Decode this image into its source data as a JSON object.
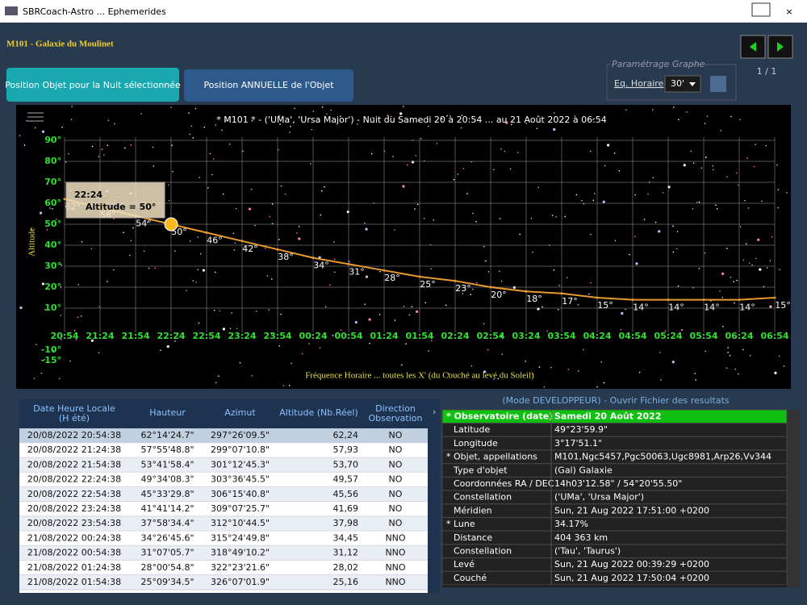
{
  "window": {
    "title": "SBRCoach-Astro ... Ephemerides"
  },
  "header": {
    "title": "M101 - Galaxie du Moulinet",
    "page": "1 / 1"
  },
  "tabs": [
    "Position Objet pour la Nuit sélectionnée",
    "Position ANNUELLE de l'Objet"
  ],
  "settings": {
    "group": "Paramétrage Graphe",
    "label": "Eq. Horaire",
    "value": "30'"
  },
  "chart_data": {
    "type": "line",
    "title": "* M101 * - ('UMa', 'Ursa Major') - Nuit du Samedi 20 à 20:54 ... au 21 Août 2022 à 06:54",
    "y_label": "Altitude",
    "x_label": "Fréquence Horaire ... toutes les X' (du Couché au levé du Soleil)",
    "categories": [
      "20:54",
      "21:24",
      "21:54",
      "22:24",
      "22:54",
      "23:24",
      "23:54",
      "00:24",
      "00:54",
      "01:24",
      "01:54",
      "02:24",
      "02:54",
      "03:24",
      "03:54",
      "04:24",
      "04:54",
      "05:24",
      "05:54",
      "06:24",
      "06:54"
    ],
    "series": [
      {
        "name": "Altitude",
        "color": "#e89a30",
        "values": [
          62,
          58,
          54,
          50,
          46,
          42,
          38,
          34,
          31,
          28,
          25,
          23,
          20,
          18,
          17,
          15,
          14,
          14,
          14,
          14,
          15
        ],
        "value_labels": [
          "62°",
          "58°",
          "54°",
          "50°",
          "46°",
          "42°",
          "38°",
          "34°",
          "31°",
          "28°",
          "25°",
          "23°",
          "20°",
          "18°",
          "17°",
          "15°",
          "14°",
          "14°",
          "14°",
          "14°",
          "15°"
        ]
      }
    ],
    "ylim": [
      -28,
      96
    ],
    "yticks": [
      {
        "value": -15,
        "label": "-15°"
      },
      {
        "value": -10,
        "label": "-10°"
      },
      {
        "value": 10,
        "label": "10°"
      },
      {
        "value": 20,
        "label": "20°"
      },
      {
        "value": 30,
        "label": "30°"
      },
      {
        "value": 40,
        "label": "40°"
      },
      {
        "value": 50,
        "label": "50°"
      },
      {
        "value": 60,
        "label": "60°"
      },
      {
        "value": 70,
        "label": "70°"
      },
      {
        "value": 80,
        "label": "80°"
      },
      {
        "value": 90,
        "label": "90°"
      }
    ],
    "grid": true,
    "tooltip": {
      "title": "22:24",
      "text": "Altitude = 50°"
    }
  },
  "table": {
    "headers": [
      [
        "Date Heure Locale",
        "(H été)"
      ],
      [
        "Hauteur"
      ],
      [
        "Azimut"
      ],
      [
        "Altitude (Nb.Réel)"
      ],
      [
        "Direction",
        "Observation"
      ]
    ],
    "rows": [
      [
        "20/08/2022 20:54:38",
        "62°14'24.7\"",
        "297°26'09.5\"",
        "62,24",
        "NO"
      ],
      [
        "20/08/2022 21:24:38",
        "57°55'48.8\"",
        "299°07'10.8\"",
        "57,93",
        "NO"
      ],
      [
        "20/08/2022 21:54:38",
        "53°41'58.4\"",
        "301°12'45.3\"",
        "53,70",
        "NO"
      ],
      [
        "20/08/2022 22:24:38",
        "49°34'08.3\"",
        "303°36'45.5\"",
        "49,57",
        "NO"
      ],
      [
        "20/08/2022 22:54:38",
        "45°33'29.8\"",
        "306°15'40.8\"",
        "45,56",
        "NO"
      ],
      [
        "20/08/2022 23:24:38",
        "41°41'14.2\"",
        "309°07'25.7\"",
        "41,69",
        "NO"
      ],
      [
        "20/08/2022 23:54:38",
        "37°58'34.4\"",
        "312°10'44.5\"",
        "37,98",
        "NO"
      ],
      [
        "21/08/2022 00:24:38",
        "34°26'45.6\"",
        "315°24'49.8\"",
        "34,45",
        "NNO"
      ],
      [
        "21/08/2022 00:54:38",
        "31°07'05.7\"",
        "318°49'10.2\"",
        "31,12",
        "NNO"
      ],
      [
        "21/08/2022 01:24:38",
        "28°00'54.8\"",
        "322°23'21.6\"",
        "28,02",
        "NNO"
      ],
      [
        "21/08/2022 01:54:38",
        "25°09'34.5\"",
        "326°07'01.9\"",
        "25,16",
        "NNO"
      ]
    ]
  },
  "properties": {
    "header": "(Mode DEVELOPPEUR) - Ouvrir Fichier des resultats",
    "rows": [
      [
        "* Observatoire (date)",
        "Samedi 20 Août 2022"
      ],
      [
        "Latitude",
        "49°23'59.9\""
      ],
      [
        "Longitude",
        "3°17'51.1\""
      ],
      [
        "* Objet, appellations",
        "M101,Ngc5457,Pgc50063,Ugc8981,Arp26,Vv344"
      ],
      [
        "Type d'objet",
        "(Gal) Galaxie"
      ],
      [
        "Coordonnées RA / DEC",
        "14h03'12.58\" / 54°20'55.50\""
      ],
      [
        "Constellation",
        "('UMa', 'Ursa Major')"
      ],
      [
        "Méridien",
        "Sun, 21 Aug 2022 17:51:00 +0200"
      ],
      [
        "* Lune",
        "34.17%"
      ],
      [
        "Distance",
        "404 363 km"
      ],
      [
        "Constellation",
        "('Tau', 'Taurus')"
      ],
      [
        "Levé",
        "Sun, 21 Aug 2022 00:39:29 +0200"
      ],
      [
        "Couché",
        "Sun, 21 Aug 2022 17:50:04 +0200"
      ]
    ]
  }
}
